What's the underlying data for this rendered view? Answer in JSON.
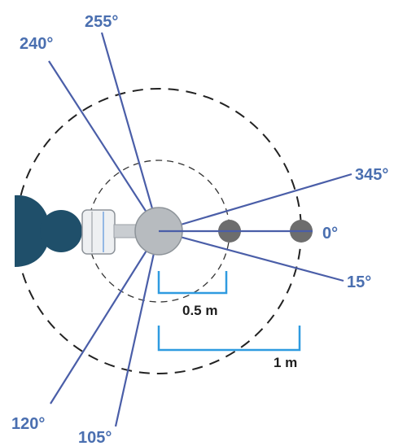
{
  "angles": [
    {
      "text": "255°",
      "deg": 255
    },
    {
      "text": "240°",
      "deg": 240
    },
    {
      "text": "345°",
      "deg": 345
    },
    {
      "text": "0°",
      "deg": 0
    },
    {
      "text": "15°",
      "deg": 15
    },
    {
      "text": "120°",
      "deg": 120
    },
    {
      "text": "105°",
      "deg": 105
    }
  ],
  "distances": {
    "half": "0.5 m",
    "full": "1 m"
  },
  "colors": {
    "ray": "#4a5ea8",
    "label": "#4a6fb0",
    "bracket": "#2f9be0",
    "source": "#b7bbbf",
    "marker": "#6d6d6d",
    "head": "#1f4f6a",
    "dashed": "#222222"
  }
}
